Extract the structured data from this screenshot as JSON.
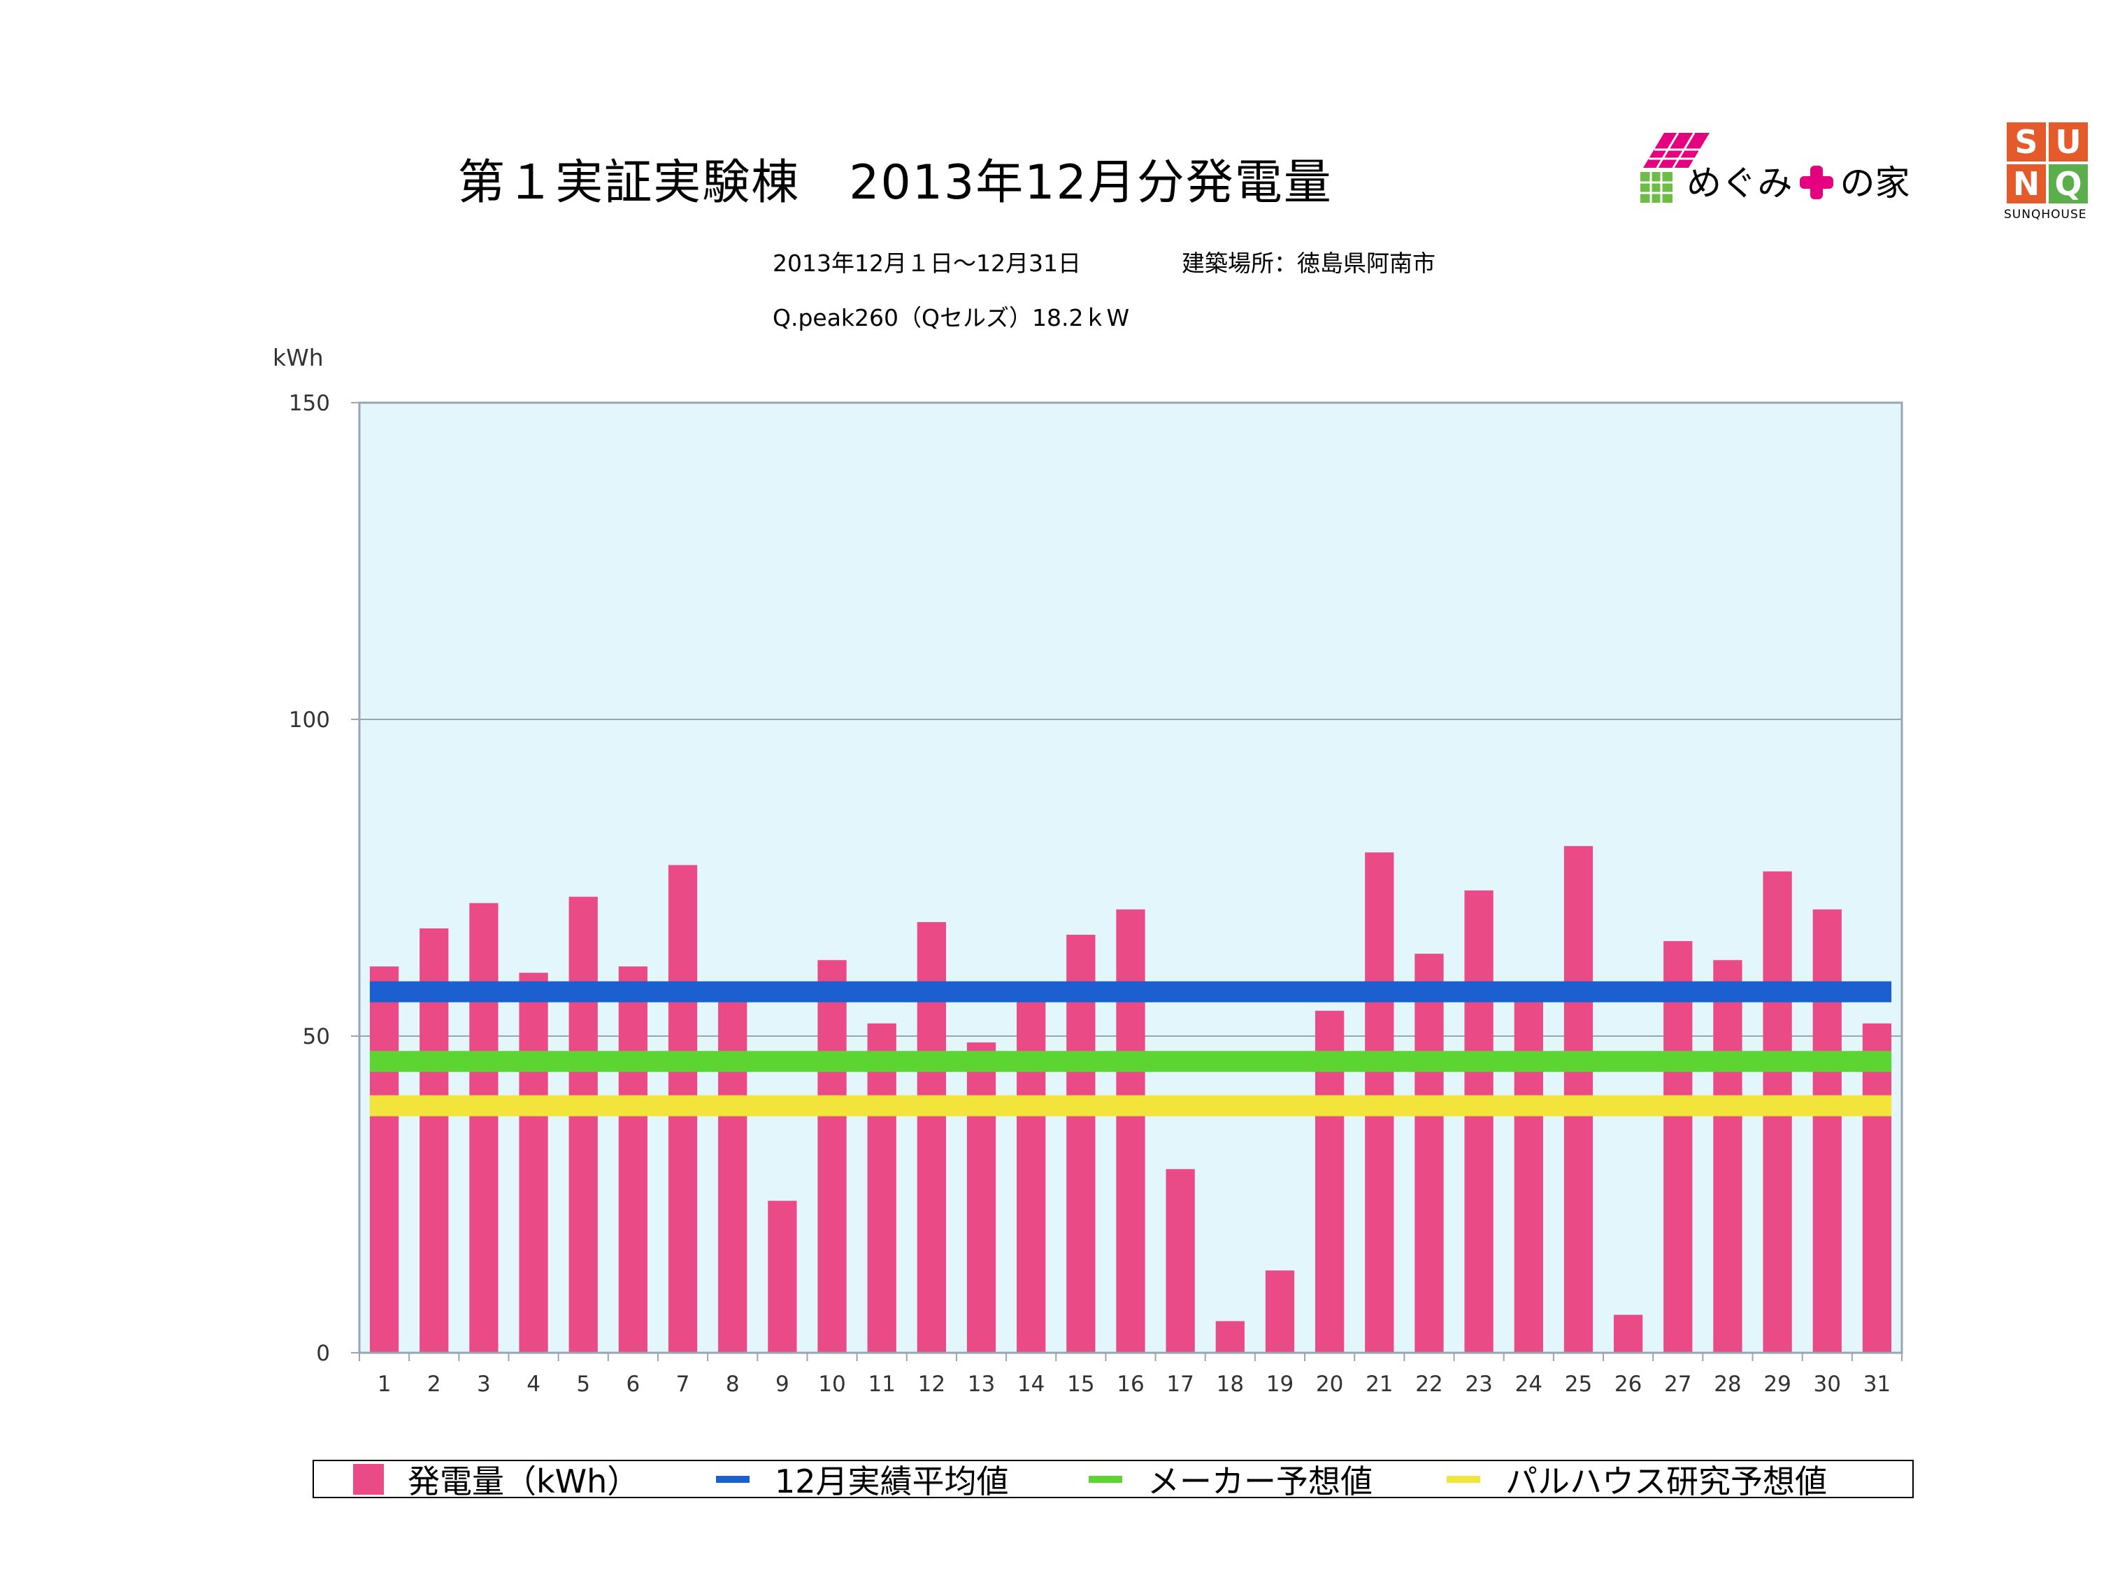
{
  "header": {
    "title": "第１実証実験棟　2013年12月分発電量",
    "period": "2013年12月１日〜12月31日",
    "location": "建築場所：徳島県阿南市",
    "spec": "Q.peak260（Qセルズ）18.2ｋW"
  },
  "logos": {
    "megumi": {
      "text_before": "めぐみ",
      "text_after": "の家",
      "plus_text": "プラス"
    },
    "sunq": {
      "letters": [
        "S",
        "U",
        "N",
        "Q"
      ],
      "caption": "SUNQHOUSE"
    }
  },
  "colors": {
    "bar": "#ea4a85",
    "average": "#1c5fd0",
    "maker": "#5cd431",
    "palhouse": "#f2e43a",
    "plot_bg": "#e3f6fc"
  },
  "chart_data": {
    "type": "bar",
    "ylabel": "kWh",
    "ylim": [
      0,
      150
    ],
    "yticks": [
      0,
      50,
      100,
      150
    ],
    "grid": true,
    "legend_position": "bottom",
    "categories": [
      "1",
      "2",
      "3",
      "4",
      "5",
      "6",
      "7",
      "8",
      "9",
      "10",
      "11",
      "12",
      "13",
      "14",
      "15",
      "16",
      "17",
      "18",
      "19",
      "20",
      "21",
      "22",
      "23",
      "24",
      "25",
      "26",
      "27",
      "28",
      "29",
      "30",
      "31"
    ],
    "series": [
      {
        "name": "発電量（kWh）",
        "type": "bar",
        "values": [
          61,
          67,
          71,
          60,
          72,
          61,
          77,
          56,
          24,
          62,
          52,
          68,
          49,
          56,
          66,
          70,
          29,
          5,
          13,
          54,
          79,
          63,
          73,
          56,
          80,
          6,
          65,
          62,
          76,
          70,
          52
        ]
      },
      {
        "name": "12月実績平均値",
        "type": "line",
        "value": 57
      },
      {
        "name": "メーカー予想値",
        "type": "line",
        "value": 46
      },
      {
        "name": "パルハウス研究予想値",
        "type": "line",
        "value": 39
      }
    ]
  }
}
